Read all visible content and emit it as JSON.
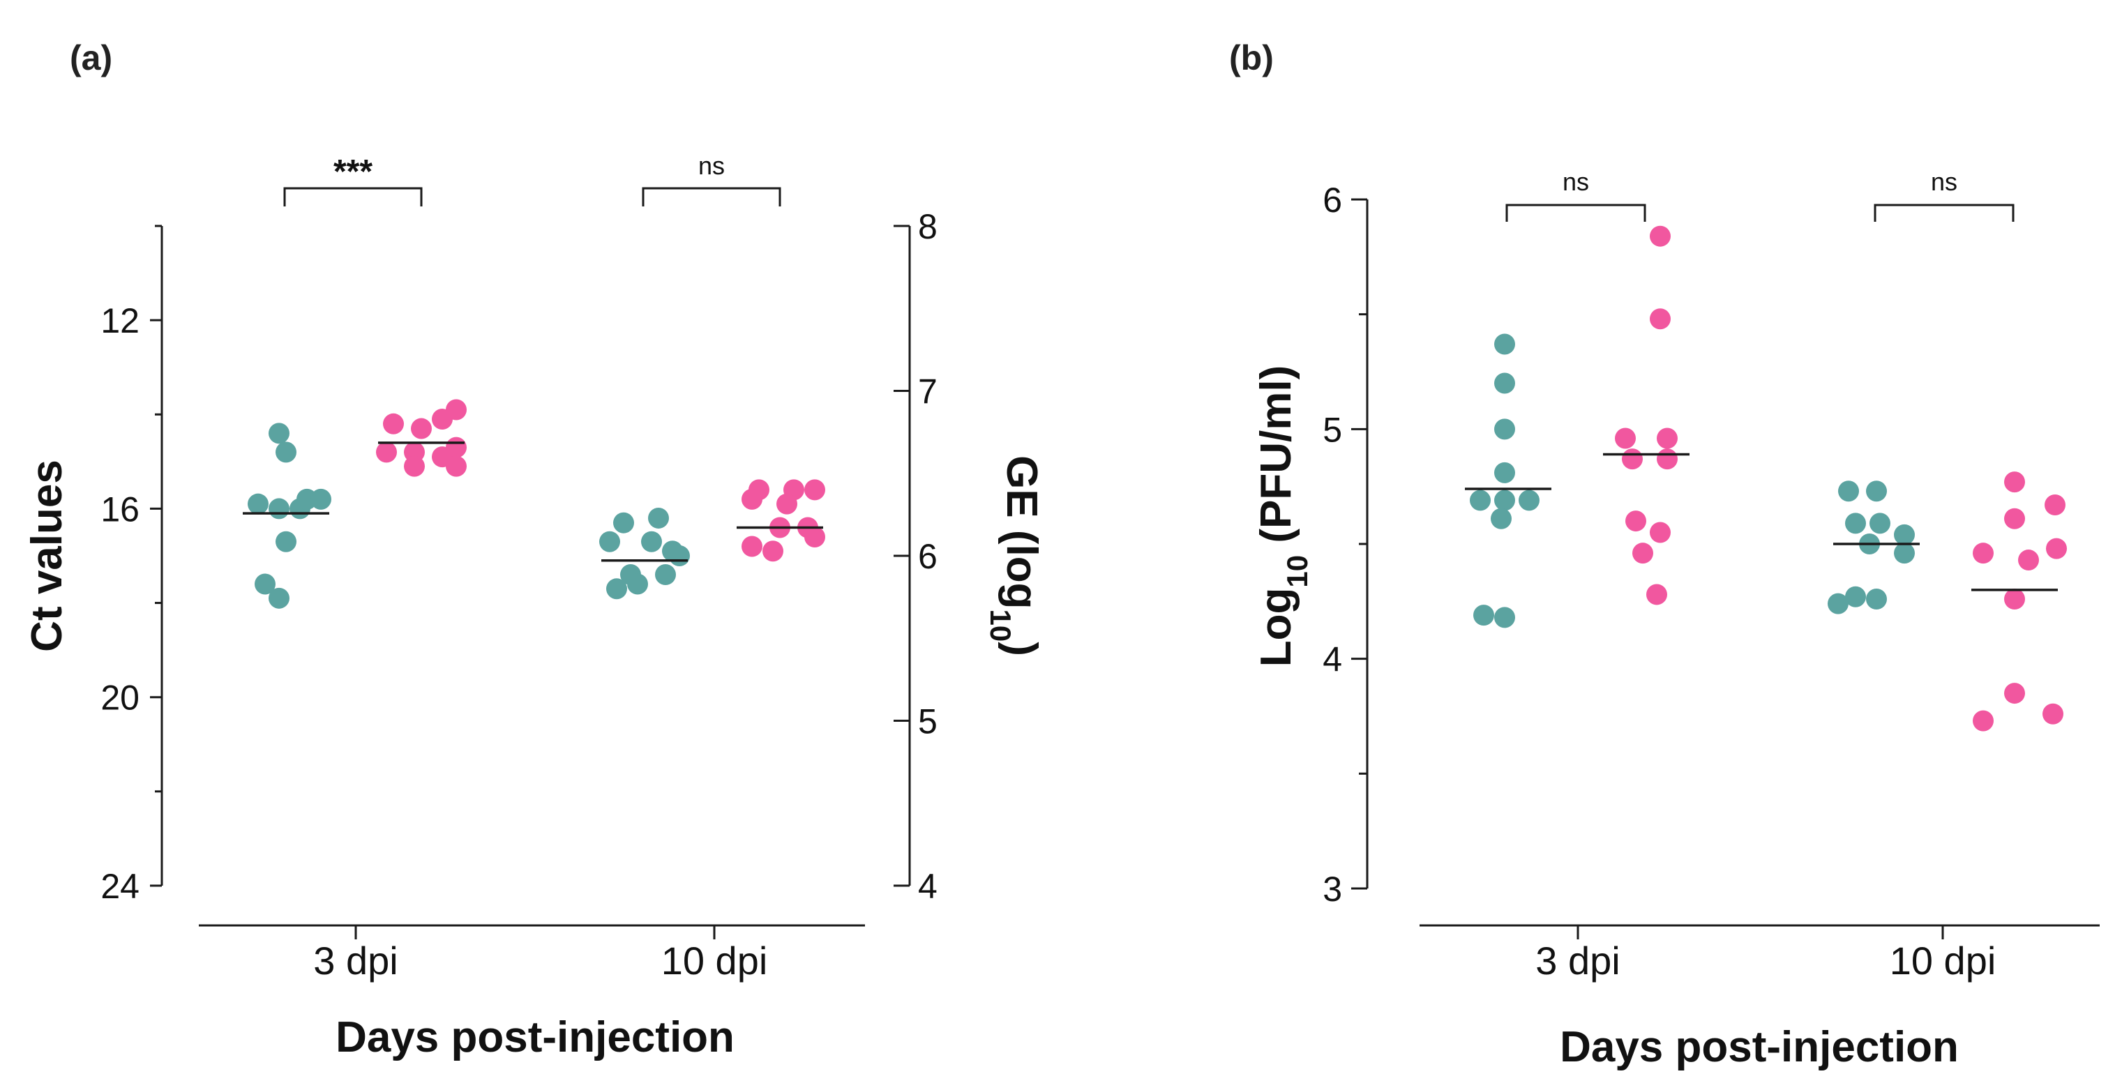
{
  "colors": {
    "group1": "#5ba3a0",
    "group2": "#f1579f",
    "axis": "#1a1a1a"
  },
  "chart_data": [
    {
      "panel": "(a)",
      "type": "scatter",
      "xlabel": "Days post-injection",
      "ylabel": "Ct values",
      "ylabel_right": "GE (log",
      "ylabel_right_sub": "10",
      "ylabel_right_close": ")",
      "categories": [
        "3 dpi",
        "10 dpi"
      ],
      "ylim": [
        24,
        10
      ],
      "yticks": [
        "12",
        "16",
        "20",
        "24"
      ],
      "yticks_right": [
        "4",
        "5",
        "6",
        "7",
        "8"
      ],
      "series": [
        {
          "name": "group1",
          "color": "#5ba3a0",
          "values": {
            "3 dpi": [
              14.4,
              14.8,
              15.9,
              16.0,
              16.0,
              15.8,
              15.8,
              16.7,
              17.6,
              17.9
            ],
            "10 dpi": [
              16.3,
              16.2,
              16.7,
              16.7,
              16.9,
              17.4,
              17.4,
              17.7,
              17.6,
              17.0
            ]
          },
          "median": {
            "3 dpi": 16.1,
            "10 dpi": 17.1
          }
        },
        {
          "name": "group2",
          "color": "#f1579f",
          "values": {
            "3 dpi": [
              14.2,
              14.3,
              14.1,
              13.9,
              14.8,
              14.8,
              14.9,
              14.7,
              15.1,
              15.1
            ],
            "10 dpi": [
              15.6,
              15.6,
              15.6,
              15.8,
              15.9,
              16.4,
              16.8,
              16.9,
              16.4,
              16.6
            ]
          },
          "median": {
            "3 dpi": 14.6,
            "10 dpi": 16.4
          }
        }
      ],
      "annotations": [
        {
          "category": "3 dpi",
          "text": "***"
        },
        {
          "category": "10 dpi",
          "text": "ns"
        }
      ]
    },
    {
      "panel": "(b)",
      "type": "scatter",
      "xlabel": "Days post-injection",
      "ylabel": "Log",
      "ylabel_sub": "10",
      "ylabel_rest": " (PFU/ml)",
      "categories": [
        "3 dpi",
        "10 dpi"
      ],
      "ylim": [
        3,
        6
      ],
      "yticks": [
        "3",
        "4",
        "5",
        "6"
      ],
      "series": [
        {
          "name": "group1",
          "color": "#5ba3a0",
          "values": {
            "3 dpi": [
              5.37,
              5.2,
              5.0,
              4.81,
              4.69,
              4.69,
              4.69,
              4.61,
              4.19,
              4.18
            ],
            "10 dpi": [
              4.73,
              4.73,
              4.59,
              4.59,
              4.54,
              4.5,
              4.46,
              4.27,
              4.26,
              4.24
            ]
          },
          "median": {
            "3 dpi": 4.74,
            "10 dpi": 4.5
          }
        },
        {
          "name": "group2",
          "color": "#f1579f",
          "values": {
            "3 dpi": [
              5.84,
              5.48,
              4.96,
              4.96,
              4.87,
              4.87,
              4.6,
              4.55,
              4.46,
              4.28
            ],
            "10 dpi": [
              4.77,
              4.67,
              4.61,
              4.48,
              4.46,
              4.43,
              4.26,
              3.85,
              3.76,
              3.73
            ]
          },
          "median": {
            "3 dpi": 4.89,
            "10 dpi": 4.3
          }
        }
      ],
      "annotations": [
        {
          "category": "3 dpi",
          "text": "ns"
        },
        {
          "category": "10 dpi",
          "text": "ns"
        }
      ]
    }
  ]
}
